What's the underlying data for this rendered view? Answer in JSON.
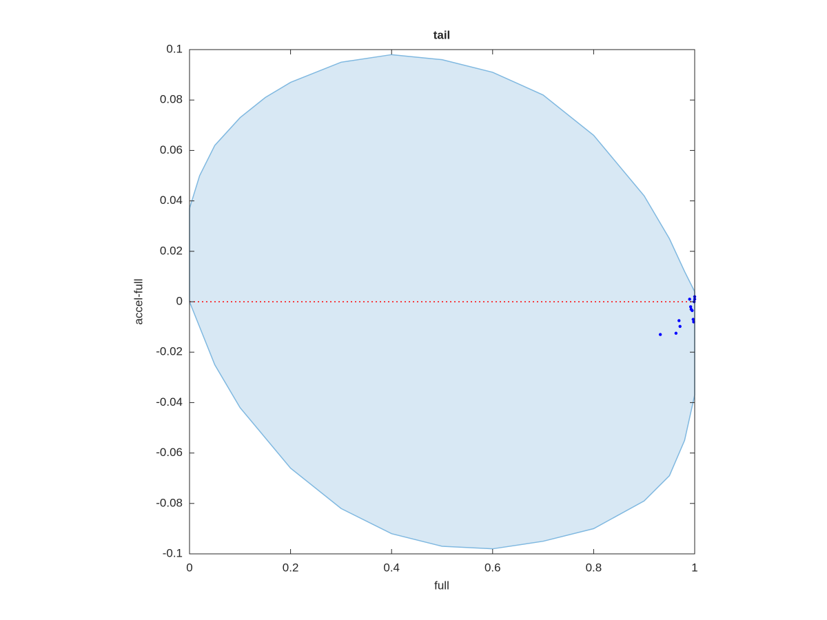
{
  "chart_data": {
    "type": "scatter",
    "title": "tail",
    "x_label": "full",
    "y_label": "accel-full",
    "xlim": [
      0,
      1
    ],
    "ylim": [
      -0.1,
      0.1
    ],
    "xticks": [
      0,
      0.2,
      0.4,
      0.6,
      0.8,
      1
    ],
    "yticks": [
      -0.1,
      -0.08,
      -0.06,
      -0.04,
      -0.02,
      0,
      0.02,
      0.04,
      0.06,
      0.08,
      0.1
    ],
    "box": true,
    "series": [
      {
        "kind": "area",
        "color": "#7fb8e0",
        "fill": "#d8e8f4",
        "x": [
          0,
          0.02,
          0.05,
          0.1,
          0.15,
          0.2,
          0.3,
          0.4,
          0.5,
          0.6,
          0.7,
          0.8,
          0.9,
          0.95,
          0.98,
          1,
          1,
          0.98,
          0.95,
          0.9,
          0.8,
          0.7,
          0.6,
          0.5,
          0.4,
          0.3,
          0.2,
          0.1,
          0.05,
          0.02,
          0
        ],
        "y": [
          0.037,
          0.05,
          0.062,
          0.073,
          0.081,
          0.087,
          0.095,
          0.098,
          0.096,
          0.091,
          0.082,
          0.066,
          0.042,
          0.025,
          0.012,
          0.004,
          -0.037,
          -0.055,
          -0.069,
          -0.079,
          -0.09,
          -0.095,
          -0.098,
          -0.097,
          -0.092,
          -0.082,
          -0.066,
          -0.042,
          -0.025,
          -0.01,
          0
        ]
      },
      {
        "kind": "line",
        "color": "#ff0000",
        "dash": true,
        "x": [
          0,
          1
        ],
        "y": [
          0,
          0
        ]
      },
      {
        "kind": "points",
        "color": "#0000ff",
        "x": [
          0.932,
          0.963,
          0.969,
          0.971,
          0.99,
          0.992,
          0.993,
          0.995,
          0.997,
          0.998,
          0.999,
          1,
          1
        ],
        "y": [
          -0.013,
          -0.0125,
          -0.0075,
          -0.0098,
          0.001,
          -0.002,
          -0.003,
          -0.0035,
          -0.007,
          -0.008,
          0,
          0.002,
          0.001
        ]
      }
    ]
  }
}
